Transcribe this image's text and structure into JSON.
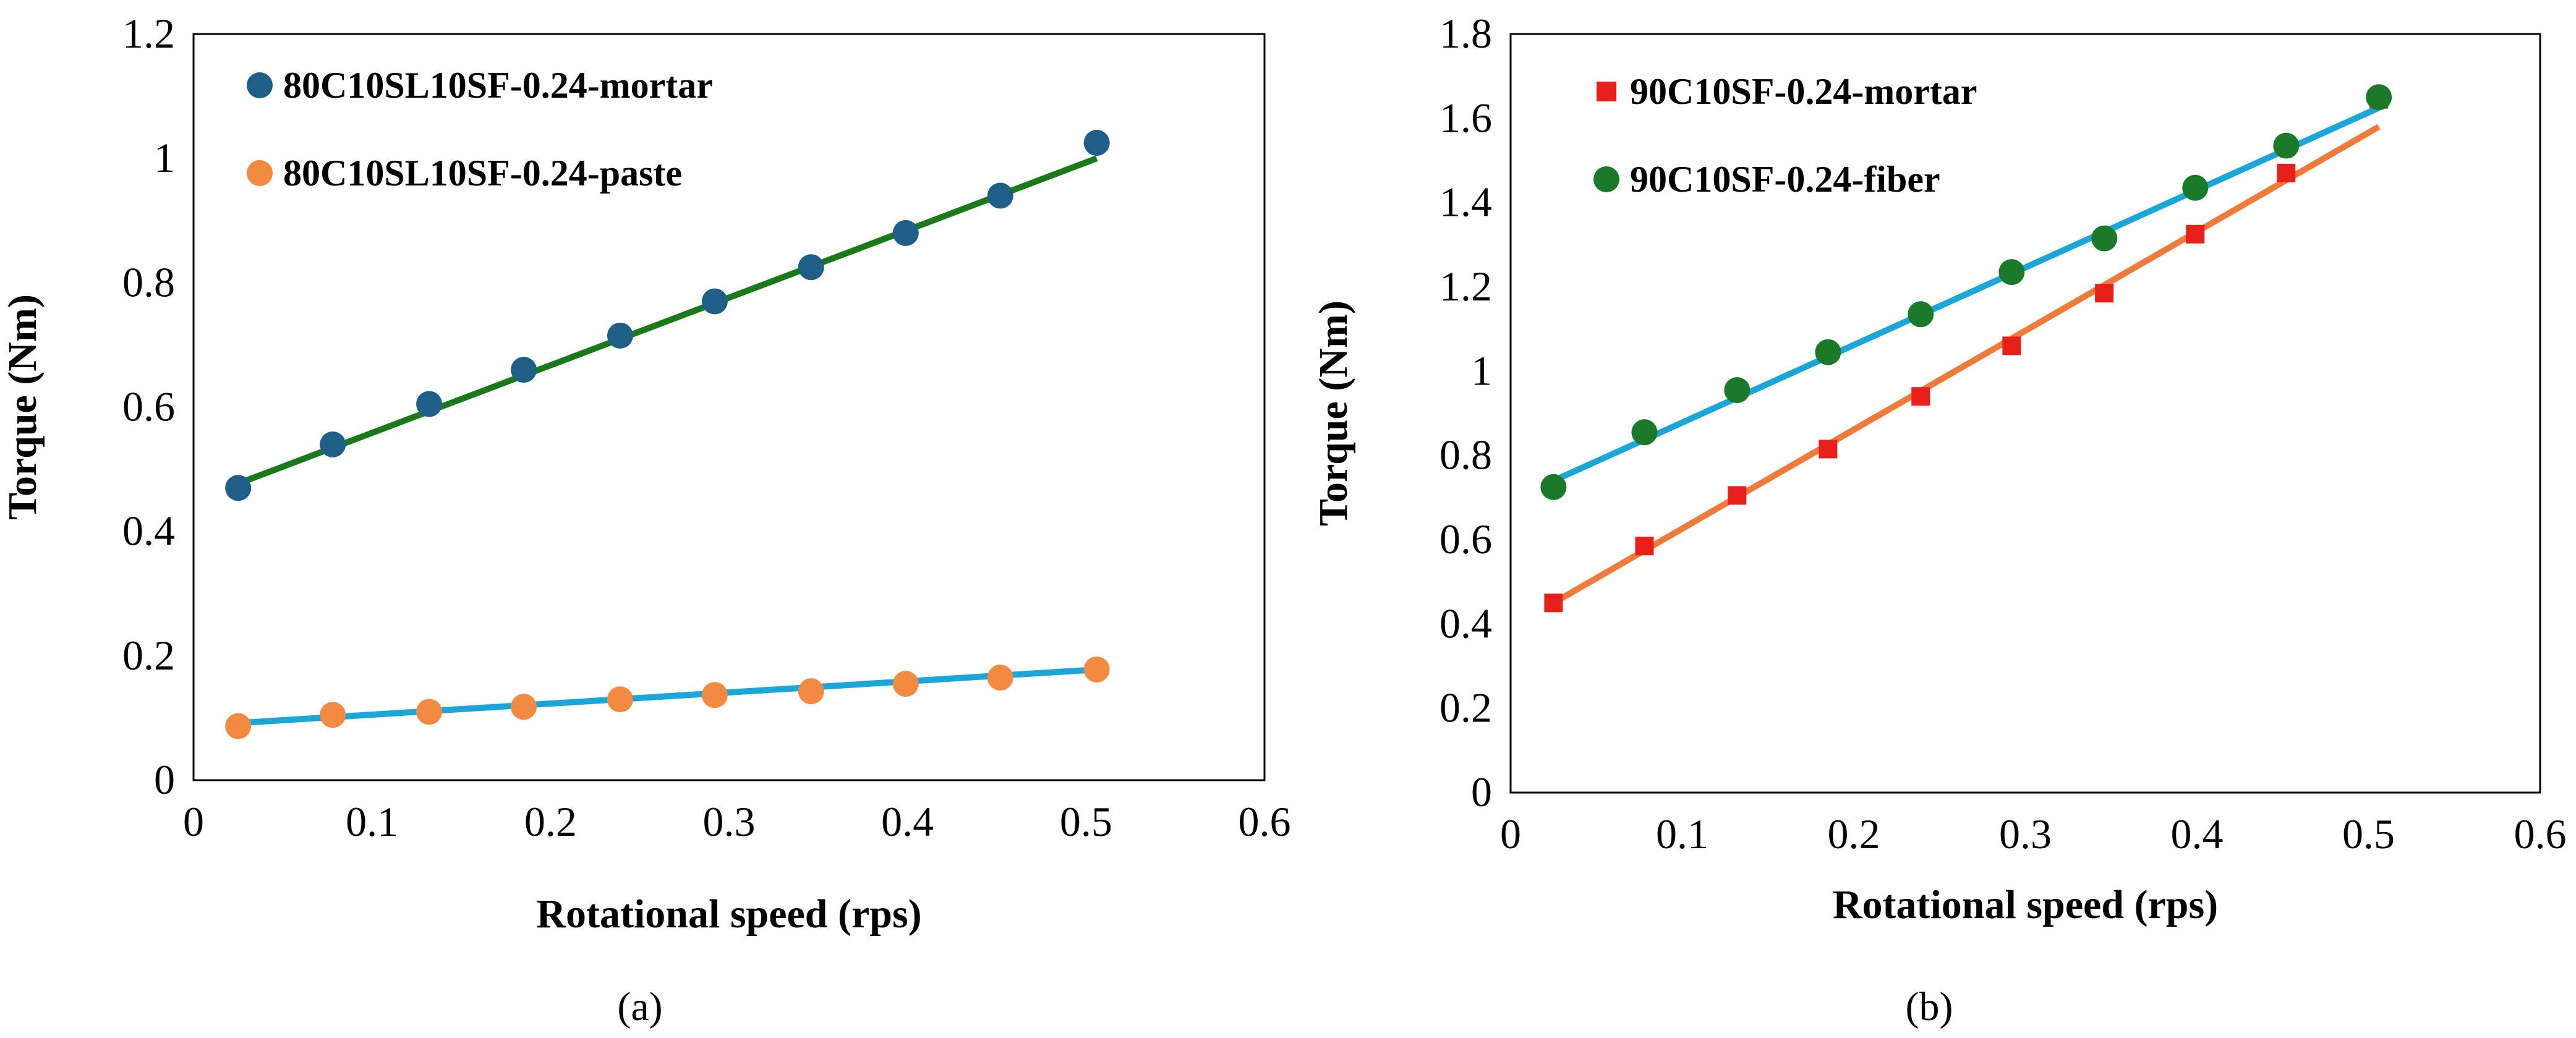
{
  "chart_data": [
    {
      "type": "scatter",
      "panel_label": "(a)",
      "xlabel": "Rotational speed (rps)",
      "ylabel": "Torque (Nm)",
      "xlim": [
        0,
        0.6
      ],
      "ylim": [
        0,
        1.2
      ],
      "xticks": [
        "0",
        "0.1",
        "0.2",
        "0.3",
        "0.4",
        "0.5",
        "0.6"
      ],
      "yticks": [
        "0",
        "0.2",
        "0.4",
        "0.6",
        "0.8",
        "1",
        "1.2"
      ],
      "legend_position": "top-left",
      "grid": false,
      "x": [
        0.025,
        0.078,
        0.132,
        0.185,
        0.239,
        0.292,
        0.346,
        0.399,
        0.452,
        0.506
      ],
      "series": [
        {
          "name": "80C10SL10SF-0.24-mortar",
          "marker": "circle",
          "color": "#1f5f87",
          "values": [
            0.47,
            0.54,
            0.605,
            0.66,
            0.715,
            0.77,
            0.825,
            0.88,
            0.94,
            1.025
          ],
          "fit_color": "#1a7a1a",
          "fit": [
            [
              0.025,
              0.477
            ],
            [
              0.506,
              1.0
            ]
          ]
        },
        {
          "name": "80C10SL10SF-0.24-paste",
          "marker": "circle",
          "color": "#f28a42",
          "values": [
            0.087,
            0.105,
            0.11,
            0.118,
            0.13,
            0.137,
            0.143,
            0.155,
            0.165,
            0.178
          ],
          "fit_color": "#1aa6d8",
          "fit": [
            [
              0.025,
              0.092
            ],
            [
              0.506,
              0.178
            ]
          ]
        }
      ]
    },
    {
      "type": "scatter",
      "panel_label": "(b)",
      "xlabel": "Rotational speed (rps)",
      "ylabel": "Torque (Nm)",
      "xlim": [
        0,
        0.6
      ],
      "ylim": [
        0,
        1.8
      ],
      "xticks": [
        "0",
        "0.1",
        "0.2",
        "0.3",
        "0.4",
        "0.5",
        "0.6"
      ],
      "yticks": [
        "0",
        "0.2",
        "0.4",
        "0.6",
        "0.8",
        "1",
        "1.2",
        "1.4",
        "1.6",
        "1.8"
      ],
      "legend_position": "top-left",
      "grid": false,
      "x": [
        0.025,
        0.078,
        0.132,
        0.185,
        0.239,
        0.292,
        0.346,
        0.399,
        0.452,
        0.506
      ],
      "series": [
        {
          "name": "90C10SF-0.24-mortar",
          "marker": "square",
          "color": "#e8201c",
          "values": [
            0.45,
            0.585,
            0.705,
            0.815,
            0.94,
            1.06,
            1.185,
            1.325,
            1.47,
            1.645
          ],
          "fit_color": "#f07a3a",
          "fit": [
            [
              0.025,
              0.45
            ],
            [
              0.506,
              1.58
            ]
          ]
        },
        {
          "name": "90C10SF-0.24-fiber",
          "marker": "circle",
          "color": "#1a7a2a",
          "values": [
            0.725,
            0.855,
            0.955,
            1.045,
            1.135,
            1.235,
            1.315,
            1.435,
            1.535,
            1.65
          ],
          "fit_color": "#1aa6d8",
          "fit": [
            [
              0.025,
              0.74
            ],
            [
              0.506,
              1.625
            ]
          ]
        }
      ]
    }
  ]
}
